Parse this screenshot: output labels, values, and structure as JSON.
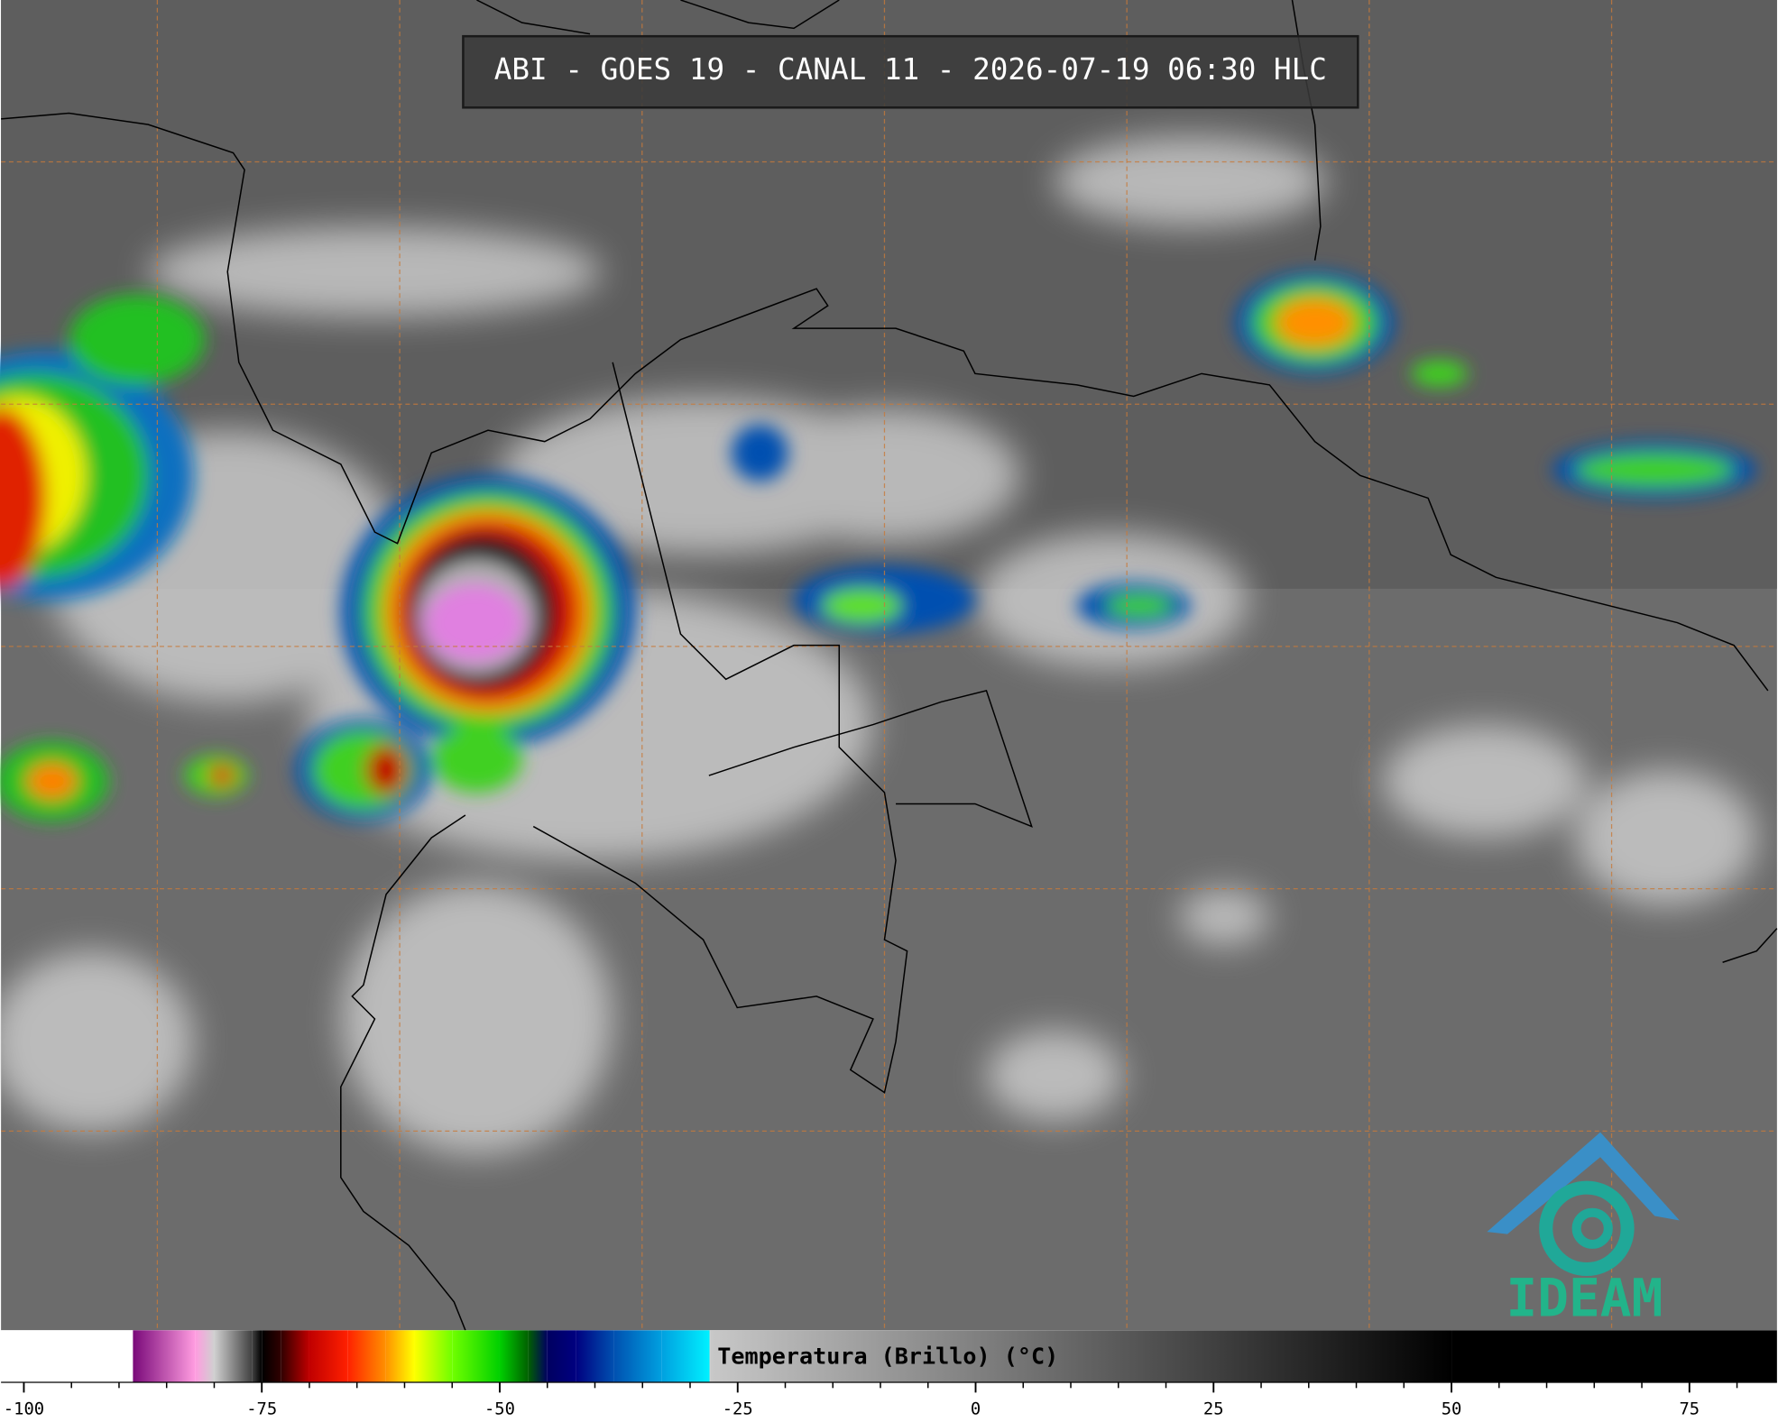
{
  "header": {
    "title": "ABI - GOES 19 - CANAL 11 - 2026-07-19 06:30 HLC"
  },
  "colorbar": {
    "label": "Temperatura (Brillo) (°C)",
    "lim": [
      -102.4,
      84.2
    ],
    "ticks": [
      -100,
      -75,
      -50,
      -25,
      0,
      25,
      50,
      75
    ],
    "minor_ticks": [
      -95,
      -90,
      -85,
      -80,
      -70,
      -65,
      -60,
      -55,
      -45,
      -40,
      -35,
      -30,
      -20,
      -15,
      -10,
      -5,
      5,
      10,
      15,
      20,
      30,
      35,
      40,
      45,
      55,
      60,
      65,
      70,
      80
    ],
    "stops": [
      {
        "value": -102.4,
        "color": "#ffffff"
      },
      {
        "value": -88.6,
        "color": "#ffffff"
      },
      {
        "value": -88.5,
        "color": "#7a0a7a"
      },
      {
        "value": -82,
        "color": "#ff9ce0"
      },
      {
        "value": -80,
        "color": "#d0d0d0"
      },
      {
        "value": -76,
        "color": "#404040"
      },
      {
        "value": -75,
        "color": "#000000"
      },
      {
        "value": -73,
        "color": "#300000"
      },
      {
        "value": -70,
        "color": "#c00000"
      },
      {
        "value": -66,
        "color": "#ff2000"
      },
      {
        "value": -62,
        "color": "#ff9000"
      },
      {
        "value": -59,
        "color": "#ffff00"
      },
      {
        "value": -55,
        "color": "#70ff00"
      },
      {
        "value": -50,
        "color": "#00d000"
      },
      {
        "value": -47,
        "color": "#006000"
      },
      {
        "value": -45,
        "color": "#000060"
      },
      {
        "value": -42,
        "color": "#000080"
      },
      {
        "value": -38,
        "color": "#0050b0"
      },
      {
        "value": -33,
        "color": "#00a0e0"
      },
      {
        "value": -28,
        "color": "#00f0ff"
      },
      {
        "value": -27.9,
        "color": "#c8c8c8"
      },
      {
        "value": 50,
        "color": "#000000"
      },
      {
        "value": 84.2,
        "color": "#000000"
      }
    ]
  },
  "logo": {
    "text": "IDEAM"
  }
}
